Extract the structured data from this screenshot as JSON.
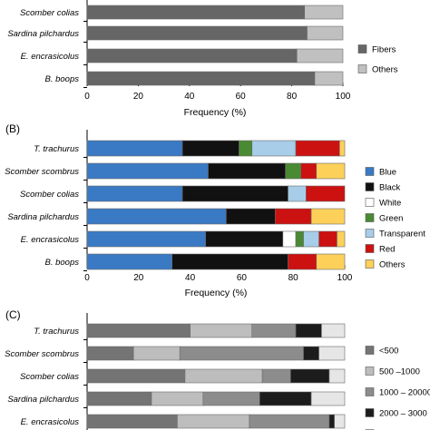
{
  "chart_data": [
    {
      "panel": "",
      "type": "bar",
      "orientation": "horizontal",
      "stacked": true,
      "xlabel": "Frequency (%)",
      "xlim": [
        0,
        100
      ],
      "xticks": [
        0,
        20,
        40,
        60,
        80,
        100
      ],
      "legend_position": "right",
      "categories": [
        "Scomber colias",
        "Sardina pilchardus",
        "E. encrasicolus",
        "B. boops"
      ],
      "series": [
        {
          "name": "Fibers",
          "color": "#666666",
          "values": [
            85,
            86,
            82,
            89
          ]
        },
        {
          "name": "Others",
          "color": "#c0c0c0",
          "values": [
            15,
            14,
            18,
            11
          ]
        }
      ]
    },
    {
      "panel": "(B)",
      "type": "bar",
      "orientation": "horizontal",
      "stacked": true,
      "xlabel": "Frequency (%)",
      "xlim": [
        0,
        100
      ],
      "xticks": [
        0,
        20,
        40,
        60,
        80,
        100
      ],
      "legend_position": "right",
      "categories": [
        "T. trachurus",
        "Scomber scombrus",
        "Scomber colias",
        "Sardina pilchardus",
        "E. encrasicolus",
        "B. boops"
      ],
      "series": [
        {
          "name": "Blue",
          "color": "#3a7ac4",
          "values": [
            37,
            47,
            37,
            54,
            46,
            33
          ]
        },
        {
          "name": "Black",
          "color": "#111111",
          "values": [
            22,
            30,
            41,
            19,
            30,
            45
          ]
        },
        {
          "name": "White",
          "color": "#ffffff",
          "values": [
            0,
            0,
            0,
            0,
            5,
            0
          ]
        },
        {
          "name": "Green",
          "color": "#4a8a32",
          "values": [
            5,
            6,
            0,
            0,
            3,
            0
          ]
        },
        {
          "name": "Transparent",
          "color": "#a7cde8",
          "values": [
            17,
            0,
            7,
            0,
            6,
            0
          ]
        },
        {
          "name": "Red",
          "color": "#cc1111",
          "values": [
            17,
            6,
            15,
            14,
            7,
            11
          ]
        },
        {
          "name": "Others",
          "color": "#fdd05a",
          "values": [
            2,
            11,
            0,
            13,
            3,
            11
          ]
        }
      ]
    },
    {
      "panel": "(C)",
      "type": "bar",
      "orientation": "horizontal",
      "stacked": true,
      "xlabel": "",
      "xlim": [
        0,
        100
      ],
      "legend_position": "right",
      "categories": [
        "T. trachurus",
        "Scomber scombrus",
        "Scomber colias",
        "Sardina pilchardus",
        "E. encrasicolus"
      ],
      "series": [
        {
          "name": "<500",
          "color": "#747474",
          "values": [
            40,
            18,
            38,
            25,
            35
          ]
        },
        {
          "name": "500 –1000",
          "color": "#bdbdbd",
          "values": [
            24,
            18,
            30,
            20,
            28
          ]
        },
        {
          "name": "1000 – 20000",
          "color": "#8c8c8c",
          "values": [
            17,
            48,
            11,
            22,
            31
          ]
        },
        {
          "name": "2000 – 3000",
          "color": "#1c1c1c",
          "values": [
            10,
            6,
            15,
            20,
            2
          ]
        },
        {
          "name": "",
          "color": "#e6e6e6",
          "values": [
            9,
            10,
            6,
            13,
            4
          ]
        }
      ]
    }
  ]
}
